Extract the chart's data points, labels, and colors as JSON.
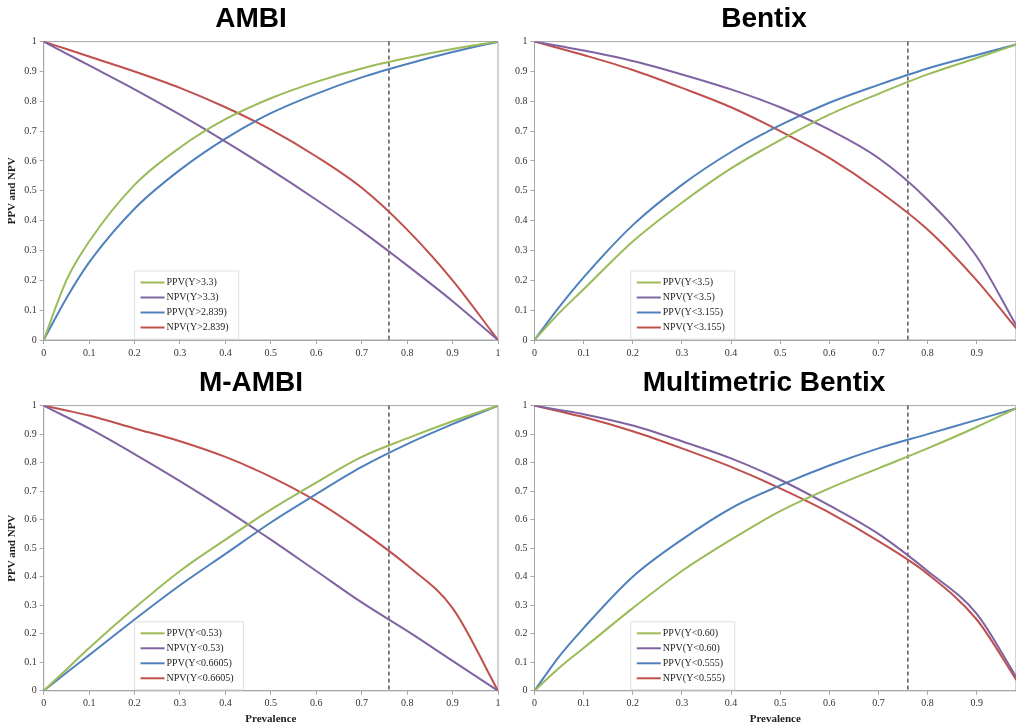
{
  "chart_data": [
    {
      "type": "line",
      "title": "AMBI",
      "ylabel": "PPV and NPV",
      "x": [
        0,
        0.05,
        0.1,
        0.2,
        0.3,
        0.4,
        0.5,
        0.6,
        0.7,
        0.8,
        0.9,
        1
      ],
      "xlim": [
        0,
        1
      ],
      "xticks": [
        0,
        0.1,
        0.2,
        0.3,
        0.4,
        0.5,
        0.6,
        0.7,
        0.8,
        0.9,
        1
      ],
      "ylim": [
        0,
        1
      ],
      "yticks": [
        0,
        0.1,
        0.2,
        0.3,
        0.4,
        0.5,
        0.6,
        0.7,
        0.8,
        0.9,
        1
      ],
      "grid": false,
      "legend": "bottom left",
      "marker": "none",
      "line_style": "solid",
      "tick_labels": "xy",
      "series": [
        {
          "name": "PPV(Y>3.3)",
          "color": "#9bbb59",
          "values": [
            0,
            0.2,
            0.33,
            0.52,
            0.645,
            0.74,
            0.81,
            0.865,
            0.91,
            0.945,
            0.975,
            1
          ]
        },
        {
          "name": "NPV(Y>3.3)",
          "color": "#8064a2",
          "values": [
            1,
            0.96,
            0.92,
            0.84,
            0.755,
            0.665,
            0.57,
            0.47,
            0.365,
            0.25,
            0.13,
            0
          ]
        },
        {
          "name": "PPV(Y>2.839)",
          "color": "#4f81bd",
          "values": [
            0,
            0.14,
            0.26,
            0.44,
            0.57,
            0.675,
            0.76,
            0.825,
            0.88,
            0.925,
            0.965,
            1
          ]
        },
        {
          "name": "NPV(Y>2.839)",
          "color": "#c0504d",
          "values": [
            1,
            0.975,
            0.95,
            0.9,
            0.845,
            0.78,
            0.705,
            0.615,
            0.51,
            0.37,
            0.2,
            0
          ]
        }
      ],
      "ref_lines": [
        {
          "axis": "x",
          "value": 0.76,
          "color": "#000000",
          "line_style": "dashed"
        }
      ]
    },
    {
      "type": "line",
      "title": "Bentix",
      "x": [
        0,
        0.05,
        0.1,
        0.2,
        0.3,
        0.4,
        0.5,
        0.6,
        0.7,
        0.8,
        0.9,
        0.98
      ],
      "xlim": [
        0,
        0.98
      ],
      "xticks": [
        0,
        0.1,
        0.2,
        0.3,
        0.4,
        0.5,
        0.6,
        0.7,
        0.8,
        0.9
      ],
      "ylim": [
        0,
        1
      ],
      "yticks": [
        0,
        0.1,
        0.2,
        0.3,
        0.4,
        0.5,
        0.6,
        0.7,
        0.8,
        0.9,
        1
      ],
      "grid": false,
      "legend": "bottom left",
      "marker": "none",
      "line_style": "solid",
      "series": [
        {
          "name": "PPV(Y<3.5)",
          "color": "#9bbb59",
          "values": [
            0,
            0.09,
            0.17,
            0.33,
            0.46,
            0.575,
            0.67,
            0.755,
            0.825,
            0.89,
            0.945,
            0.99
          ]
        },
        {
          "name": "NPV(Y<3.5)",
          "color": "#8064a2",
          "values": [
            1,
            0.985,
            0.97,
            0.935,
            0.89,
            0.84,
            0.78,
            0.705,
            0.61,
            0.47,
            0.28,
            0.05
          ]
        },
        {
          "name": "PPV(Y<3.155)",
          "color": "#4f81bd",
          "values": [
            0,
            0.11,
            0.21,
            0.385,
            0.52,
            0.63,
            0.72,
            0.795,
            0.855,
            0.91,
            0.955,
            0.99
          ]
        },
        {
          "name": "NPV(Y<3.155)",
          "color": "#c0504d",
          "values": [
            1,
            0.978,
            0.955,
            0.905,
            0.845,
            0.78,
            0.7,
            0.61,
            0.5,
            0.37,
            0.2,
            0.04
          ]
        }
      ],
      "ref_lines": [
        {
          "axis": "x",
          "value": 0.76,
          "color": "#000000",
          "line_style": "dashed"
        }
      ]
    },
    {
      "type": "line",
      "title": "M-AMBI",
      "xlabel": "Prevalence",
      "ylabel": "PPV and NPV",
      "x": [
        0,
        0.05,
        0.1,
        0.2,
        0.3,
        0.4,
        0.5,
        0.6,
        0.7,
        0.8,
        0.9,
        1
      ],
      "xlim": [
        0,
        1
      ],
      "xticks": [
        0,
        0.1,
        0.2,
        0.3,
        0.4,
        0.5,
        0.6,
        0.7,
        0.8,
        0.9,
        1
      ],
      "ylim": [
        0,
        1
      ],
      "yticks": [
        0,
        0.1,
        0.2,
        0.3,
        0.4,
        0.5,
        0.6,
        0.7,
        0.8,
        0.9,
        1
      ],
      "grid": false,
      "legend": "bottom left",
      "marker": "none",
      "line_style": "solid",
      "series": [
        {
          "name": "PPV(Y<0.53)",
          "color": "#9bbb59",
          "values": [
            0,
            0.075,
            0.15,
            0.29,
            0.42,
            0.53,
            0.635,
            0.73,
            0.82,
            0.885,
            0.945,
            1
          ]
        },
        {
          "name": "NPV(Y<0.53)",
          "color": "#8064a2",
          "values": [
            1,
            0.96,
            0.92,
            0.83,
            0.735,
            0.635,
            0.53,
            0.42,
            0.31,
            0.21,
            0.105,
            0
          ]
        },
        {
          "name": "PPV(Y<0.6605)",
          "color": "#4f81bd",
          "values": [
            0,
            0.063,
            0.125,
            0.25,
            0.37,
            0.48,
            0.59,
            0.69,
            0.785,
            0.865,
            0.935,
            1
          ]
        },
        {
          "name": "NPV(Y<0.6605)",
          "color": "#c0504d",
          "values": [
            1,
            0.983,
            0.965,
            0.92,
            0.875,
            0.82,
            0.75,
            0.665,
            0.56,
            0.44,
            0.29,
            0
          ]
        }
      ],
      "ref_lines": [
        {
          "axis": "x",
          "value": 0.76,
          "color": "#000000",
          "line_style": "dashed"
        }
      ]
    },
    {
      "type": "line",
      "title": "Multimetric Bentix",
      "xlabel": "Prevalence",
      "x": [
        0,
        0.05,
        0.1,
        0.2,
        0.3,
        0.4,
        0.5,
        0.6,
        0.7,
        0.8,
        0.9,
        0.98
      ],
      "xlim": [
        0,
        0.98
      ],
      "xticks": [
        0,
        0.1,
        0.2,
        0.3,
        0.4,
        0.5,
        0.6,
        0.7,
        0.8,
        0.9
      ],
      "ylim": [
        0,
        1
      ],
      "yticks": [
        0,
        0.1,
        0.2,
        0.3,
        0.4,
        0.5,
        0.6,
        0.7,
        0.8,
        0.9,
        1
      ],
      "grid": false,
      "legend": "bottom left",
      "marker": "none",
      "line_style": "solid",
      "series": [
        {
          "name": "PPV(Y<0.60)",
          "color": "#9bbb59",
          "values": [
            0,
            0.08,
            0.15,
            0.29,
            0.42,
            0.53,
            0.63,
            0.71,
            0.78,
            0.85,
            0.925,
            0.99
          ]
        },
        {
          "name": "NPV(Y<0.60)",
          "color": "#8064a2",
          "values": [
            1,
            0.985,
            0.97,
            0.93,
            0.875,
            0.815,
            0.74,
            0.65,
            0.55,
            0.42,
            0.27,
            0.05
          ]
        },
        {
          "name": "PPV(Y<0.555)",
          "color": "#4f81bd",
          "values": [
            0,
            0.12,
            0.22,
            0.4,
            0.53,
            0.64,
            0.72,
            0.79,
            0.85,
            0.9,
            0.95,
            0.99
          ]
        },
        {
          "name": "NPV(Y<0.555)",
          "color": "#c0504d",
          "values": [
            1,
            0.98,
            0.96,
            0.91,
            0.85,
            0.785,
            0.71,
            0.625,
            0.525,
            0.41,
            0.25,
            0.04
          ]
        }
      ],
      "ref_lines": [
        {
          "axis": "x",
          "value": 0.76,
          "color": "#000000",
          "line_style": "dashed"
        }
      ]
    }
  ]
}
